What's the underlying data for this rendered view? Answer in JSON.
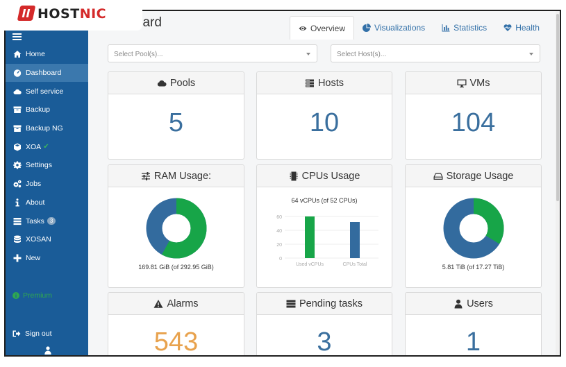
{
  "brand": {
    "logo_text_prefix": "HOST",
    "logo_text_accent": "NIC"
  },
  "header": {
    "title": "Dashboard",
    "tabs": [
      {
        "label": "Overview",
        "icon": "eye-icon",
        "active": true
      },
      {
        "label": "Visualizations",
        "icon": "pie-chart-icon",
        "active": false
      },
      {
        "label": "Statistics",
        "icon": "bar-chart-icon",
        "active": false
      },
      {
        "label": "Health",
        "icon": "heartbeat-icon",
        "active": false
      }
    ]
  },
  "sidebar": {
    "items": [
      {
        "label": "Home",
        "icon": "home-icon"
      },
      {
        "label": "Dashboard",
        "icon": "dashboard-icon",
        "active": true
      },
      {
        "label": "Self service",
        "icon": "cloud-icon"
      },
      {
        "label": "Backup",
        "icon": "archive-icon"
      },
      {
        "label": "Backup NG",
        "icon": "archive-icon"
      },
      {
        "label": "XOA",
        "icon": "cube-icon"
      },
      {
        "label": "Settings",
        "icon": "gear-icon"
      },
      {
        "label": "Jobs",
        "icon": "gears-icon"
      },
      {
        "label": "About",
        "icon": "info-icon"
      },
      {
        "label": "Tasks",
        "icon": "tasks-icon",
        "badge": "3"
      },
      {
        "label": "XOSAN",
        "icon": "database-icon"
      },
      {
        "label": "New",
        "icon": "plus-icon"
      }
    ],
    "premium": "Premium",
    "sign_out": "Sign out"
  },
  "filters": {
    "pool_placeholder": "Select Pool(s)...",
    "host_placeholder": "Select Host(s)..."
  },
  "cards": {
    "pools": {
      "title": "Pools",
      "value": "5"
    },
    "hosts": {
      "title": "Hosts",
      "value": "10"
    },
    "vms": {
      "title": "VMs",
      "value": "104"
    },
    "ram": {
      "title": "RAM Usage:",
      "caption": "169.81 GiB (of 292.95 GiB)",
      "used": 169.81,
      "total": 292.95
    },
    "cpus": {
      "title": "CPUs Usage",
      "caption": "64 vCPUs (of 52 CPUs)",
      "chart": {
        "yticks": [
          "60",
          "40",
          "20",
          "0"
        ],
        "bars": [
          {
            "label": "Used vCPUs",
            "value": 64
          },
          {
            "label": "CPUs Total",
            "value": 52
          }
        ]
      }
    },
    "storage": {
      "title": "Storage Usage",
      "caption": "5.81 TiB (of 17.27 TiB)",
      "used": 5.81,
      "total": 17.27
    },
    "alarms": {
      "title": "Alarms",
      "value": "543"
    },
    "pending": {
      "title": "Pending tasks",
      "value": "3"
    },
    "users": {
      "title": "Users",
      "value": "1"
    }
  },
  "colors": {
    "sidebar": "#1a5c98",
    "donut_free": "#336b9e",
    "donut_used": "#17a548",
    "alarm": "#e8a24d",
    "metric": "#3a6f9e"
  }
}
